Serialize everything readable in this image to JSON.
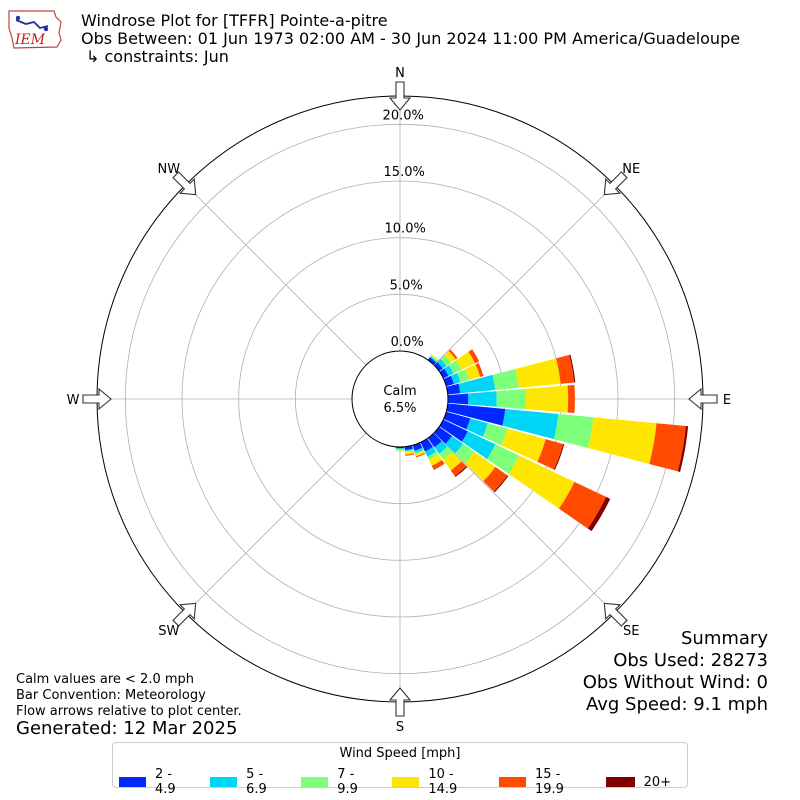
{
  "header": {
    "title": "Windrose Plot for [TFFR] Pointe-a-pitre",
    "obs_range": "Obs Between: 01 Jun 1973 02:00 AM - 30 Jun 2024 11:00 PM America/Guadeloupe",
    "constraints": "↳ constraints: Jun",
    "logo_text": "IEM"
  },
  "summary": {
    "heading": "Summary",
    "obs_used": "Obs Used: 28273",
    "obs_without_wind": "Obs Without Wind: 0",
    "avg_speed": "Avg Speed: 9.1 mph"
  },
  "notes": {
    "calm_note": "Calm values are < 2.0 mph",
    "bar_convention": "Bar Convention: Meteorology",
    "flow_arrows": "Flow arrows relative to plot center.",
    "generated": "Generated: 12 Mar 2025"
  },
  "colors": {
    "2 - 4.9": "#0028ff",
    "5 - 6.9": "#00d5f5",
    "7 - 9.9": "#7dff7a",
    "10 - 14.9": "#ffe600",
    "15 - 19.9": "#ff4a00",
    "20+": "#800000"
  },
  "chart_data": {
    "type": "windrose",
    "calm_label": "Calm",
    "calm_value": "6.5%",
    "calm_percent": 6.5,
    "radial_tick_labels": [
      "0.0%",
      "5.0%",
      "10.0%",
      "15.0%",
      "20.0%"
    ],
    "radial_ticks": [
      0,
      5,
      10,
      15,
      20
    ],
    "radial_max": 22.5,
    "direction_labels": [
      "N",
      "NE",
      "E",
      "SE",
      "S",
      "SW",
      "W",
      "NW"
    ],
    "direction_angles": [
      0,
      45,
      90,
      135,
      180,
      225,
      270,
      315
    ],
    "legend_title": "Wind Speed [mph]",
    "bins": [
      "2 - 4.9",
      "5 - 6.9",
      "7 - 9.9",
      "10 - 14.9",
      "15 - 19.9",
      "20+"
    ],
    "sectors": [
      {
        "dir": 40,
        "values": [
          0.3,
          0.1,
          0.1,
          0.1,
          0.0,
          0.0
        ]
      },
      {
        "dir": 50,
        "values": [
          0.4,
          0.4,
          0.5,
          0.5,
          0.2,
          0.0
        ]
      },
      {
        "dir": 60,
        "values": [
          0.5,
          0.5,
          0.8,
          1.3,
          0.4,
          0.0
        ]
      },
      {
        "dir": 70,
        "values": [
          0.7,
          0.6,
          0.8,
          1.0,
          0.3,
          0.0
        ]
      },
      {
        "dir": 80,
        "values": [
          1.1,
          3.1,
          2.1,
          3.7,
          1.2,
          0.1
        ]
      },
      {
        "dir": 90,
        "values": [
          1.8,
          2.5,
          2.6,
          3.7,
          0.6,
          0.0
        ]
      },
      {
        "dir": 100,
        "values": [
          5.1,
          4.7,
          3.1,
          5.6,
          2.6,
          0.2
        ]
      },
      {
        "dir": 110,
        "values": [
          2.2,
          1.6,
          1.8,
          3.5,
          1.6,
          0.1
        ]
      },
      {
        "dir": 120,
        "values": [
          2.4,
          2.7,
          2.3,
          5.4,
          3.1,
          0.4
        ]
      },
      {
        "dir": 130,
        "values": [
          1.4,
          1.2,
          1.2,
          2.3,
          1.3,
          0.1
        ]
      },
      {
        "dir": 140,
        "values": [
          1.0,
          0.7,
          0.6,
          1.2,
          0.6,
          0.1
        ]
      },
      {
        "dir": 150,
        "values": [
          0.9,
          0.5,
          0.3,
          0.6,
          0.4,
          0.0
        ]
      },
      {
        "dir": 160,
        "values": [
          0.5,
          0.2,
          0.1,
          0.2,
          0.1,
          0.0
        ]
      },
      {
        "dir": 170,
        "values": [
          0.3,
          0.1,
          0.1,
          0.2,
          0.1,
          0.0
        ]
      },
      {
        "dir": 180,
        "values": [
          0.1,
          0.1,
          0.1,
          0.1,
          0.0,
          0.0
        ]
      }
    ]
  }
}
